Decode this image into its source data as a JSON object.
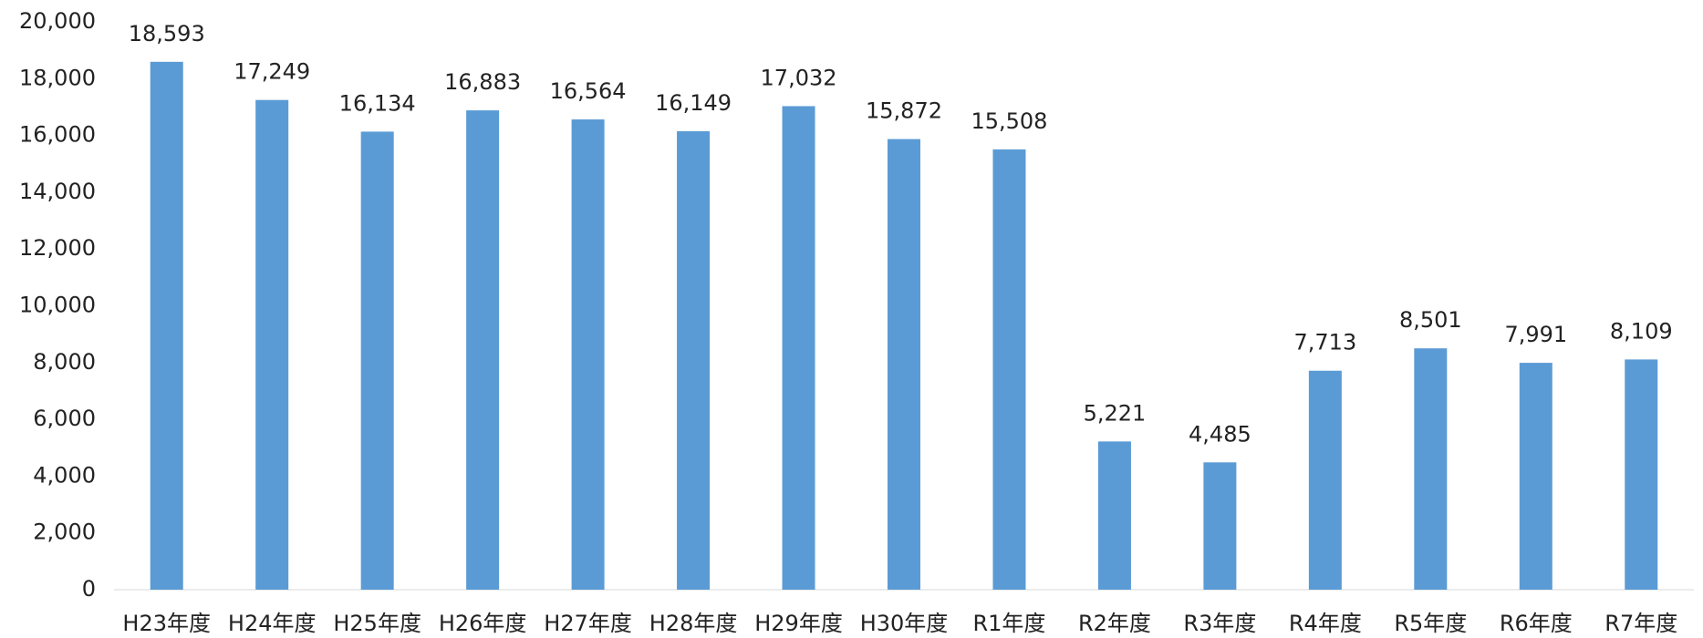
{
  "chart_data": {
    "type": "bar",
    "categories": [
      "H23年度",
      "H24年度",
      "H25年度",
      "H26年度",
      "H27年度",
      "H28年度",
      "H29年度",
      "H30年度",
      "R1年度",
      "R2年度",
      "R3年度",
      "R4年度",
      "R5年度",
      "R6年度",
      "R7年度"
    ],
    "values": [
      18593,
      17249,
      16134,
      16883,
      16564,
      16149,
      17032,
      15872,
      15508,
      5221,
      4485,
      7713,
      8501,
      7991,
      8109
    ],
    "value_labels": [
      "18,593",
      "17,249",
      "16,134",
      "16,883",
      "16,564",
      "16,149",
      "17,032",
      "15,872",
      "15,508",
      "5,221",
      "4,485",
      "7,713",
      "8,501",
      "7,991",
      "8,109"
    ],
    "color": "#5b9bd5",
    "ylim": [
      0,
      20000
    ],
    "yticks": [
      0,
      {
        "value": 2000,
        "label": "2,000"
      },
      {
        "value": 4000,
        "label": "4,000"
      },
      {
        "value": 6000,
        "label": "6,000"
      },
      {
        "value": 8000,
        "label": "8,000"
      },
      {
        "value": 10000,
        "label": "10,000"
      },
      {
        "value": 12000,
        "label": "12,000"
      },
      {
        "value": 14000,
        "label": "14,000"
      },
      {
        "value": 16000,
        "label": "16,000"
      },
      {
        "value": 18000,
        "label": "18,000"
      },
      {
        "value": 20000,
        "label": "20,000"
      }
    ],
    "grid": false
  }
}
